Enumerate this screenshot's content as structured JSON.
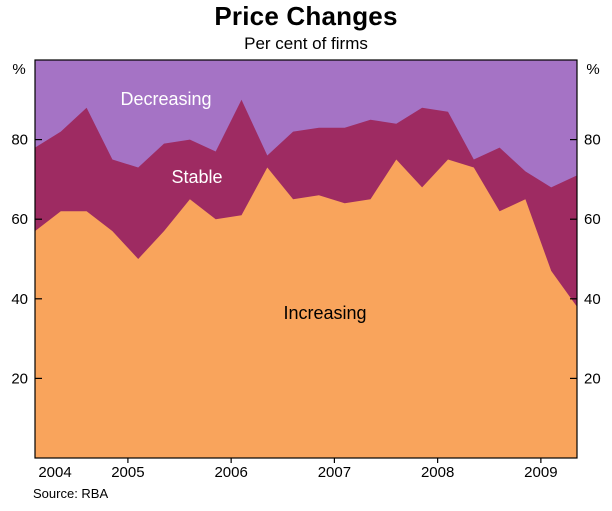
{
  "title": "Price Changes",
  "subtitle": "Per cent of firms",
  "source": "Source: RBA",
  "y_axis": {
    "unit": "%",
    "ticks": [
      20,
      40,
      60,
      80
    ],
    "min": 0,
    "max": 100
  },
  "x_axis": {
    "year_labels": [
      "2004",
      "2005",
      "2006",
      "2007",
      "2008",
      "2009"
    ]
  },
  "area_labels": {
    "decreasing": "Decreasing",
    "stable": "Stable",
    "increasing": "Increasing"
  },
  "colors": {
    "increasing": "#F9A45C",
    "stable": "#9E2B62",
    "decreasing": "#A573C5",
    "axis": "#000000",
    "background": "#FFFFFF"
  },
  "chart_data": {
    "type": "area",
    "stacked": true,
    "title": "Price Changes",
    "subtitle": "Per cent of firms",
    "ylabel": "%",
    "ylim": [
      0,
      100
    ],
    "frequency": "quarterly",
    "x_range": {
      "start": 2004.1,
      "end": 2009.35,
      "step": 0.25
    },
    "year_ticks": [
      2005,
      2006,
      2007,
      2008,
      2009
    ],
    "year_labels": [
      "2004",
      "2005",
      "2006",
      "2007",
      "2008",
      "2009"
    ],
    "legend_position": "inside-areas",
    "grid": false,
    "series": [
      {
        "name": "Increasing",
        "color": "#F9A45C",
        "values": [
          57,
          62,
          62,
          57,
          50,
          57,
          65,
          60,
          61,
          73,
          65,
          66,
          64,
          65,
          75,
          68,
          75,
          73,
          62,
          65,
          47,
          38
        ]
      },
      {
        "name": "Stable",
        "color": "#9E2B62",
        "values": [
          21,
          20,
          26,
          18,
          23,
          22,
          15,
          17,
          29,
          3,
          17,
          17,
          19,
          20,
          9,
          20,
          12,
          2,
          16,
          7,
          21,
          33
        ]
      },
      {
        "name": "Decreasing",
        "color": "#A573C5",
        "values": [
          22,
          18,
          12,
          25,
          27,
          21,
          20,
          23,
          10,
          24,
          18,
          17,
          17,
          15,
          16,
          12,
          13,
          25,
          22,
          28,
          32,
          29
        ]
      }
    ]
  }
}
